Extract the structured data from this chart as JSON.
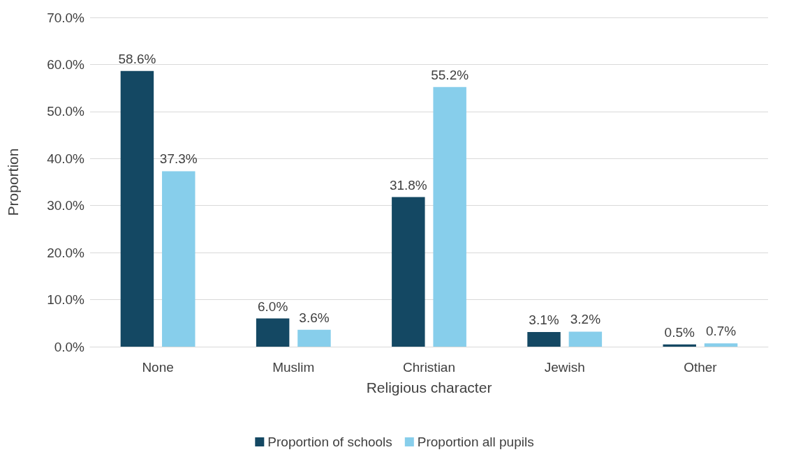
{
  "chart_data": {
    "type": "bar",
    "xlabel": "Religious character",
    "ylabel": "Proportion",
    "categories": [
      "None",
      "Muslim",
      "Christian",
      "Jewish",
      "Other"
    ],
    "series": [
      {
        "name": "Proportion of schools",
        "color": "#144863",
        "values": [
          58.6,
          6.0,
          31.8,
          3.1,
          0.5
        ],
        "value_labels": [
          "58.6%",
          "6.0%",
          "31.8%",
          "3.1%",
          "0.5%"
        ]
      },
      {
        "name": "Proportion all pupils",
        "color": "#87ceeb",
        "values": [
          37.3,
          3.6,
          55.2,
          3.2,
          0.7
        ],
        "value_labels": [
          "37.3%",
          "3.6%",
          "55.2%",
          "3.2%",
          "0.7%"
        ]
      }
    ],
    "ylim": [
      0,
      70
    ],
    "yticks": [
      {
        "value": 0,
        "label": "0.0%"
      },
      {
        "value": 10,
        "label": "10.0%"
      },
      {
        "value": 20,
        "label": "20.0%"
      },
      {
        "value": 30,
        "label": "30.0%"
      },
      {
        "value": 40,
        "label": "40.0%"
      },
      {
        "value": 50,
        "label": "50.0%"
      },
      {
        "value": 60,
        "label": "60.0%"
      },
      {
        "value": 70,
        "label": "70.0%"
      }
    ],
    "grid": "y",
    "legend": "bottom"
  }
}
